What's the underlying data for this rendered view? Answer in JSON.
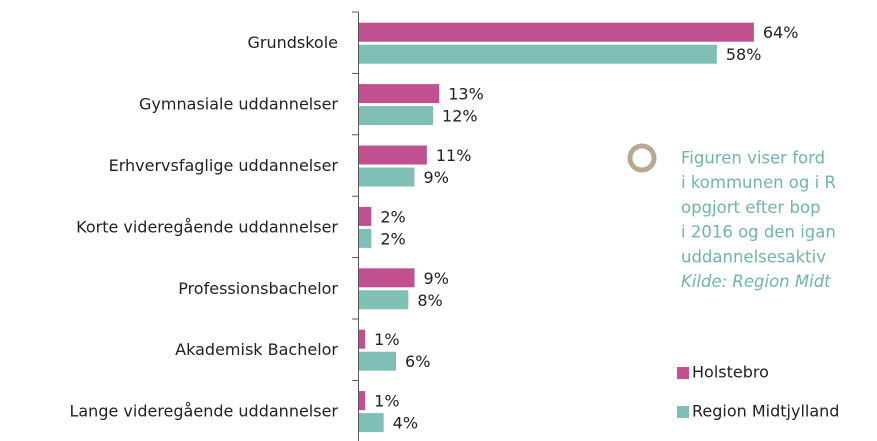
{
  "chart_data": {
    "type": "bar",
    "orientation": "horizontal",
    "categories": [
      "Grundskole",
      "Gymnasiale uddannelser",
      "Erhvervsfaglige uddannelser",
      "Korte videregående uddannelser",
      "Professionsbachelor",
      "Akademisk Bachelor",
      "Lange videregående uddannelser"
    ],
    "series": [
      {
        "name": "Holstebro",
        "color": "#c0508f",
        "values": [
          64,
          13,
          11,
          2,
          9,
          1,
          1
        ],
        "value_labels": [
          "64%",
          "13%",
          "11%",
          "2%",
          "9%",
          "1%",
          "1%"
        ]
      },
      {
        "name": "Region Midtjylland",
        "color": "#80bfb6",
        "values": [
          58,
          12,
          9,
          2,
          8,
          6,
          4
        ],
        "value_labels": [
          "58%",
          "12%",
          "9%",
          "2%",
          "8%",
          "6%",
          "4%"
        ]
      }
    ],
    "annotation": {
      "lines": [
        "Figuren viser ford",
        "i kommunen og i R",
        "opgjort efter bop",
        "i 2016 og den igan",
        "uddannelsesaktiv",
        "Kilde: Region Midt"
      ]
    },
    "legend": "bottom-right"
  }
}
